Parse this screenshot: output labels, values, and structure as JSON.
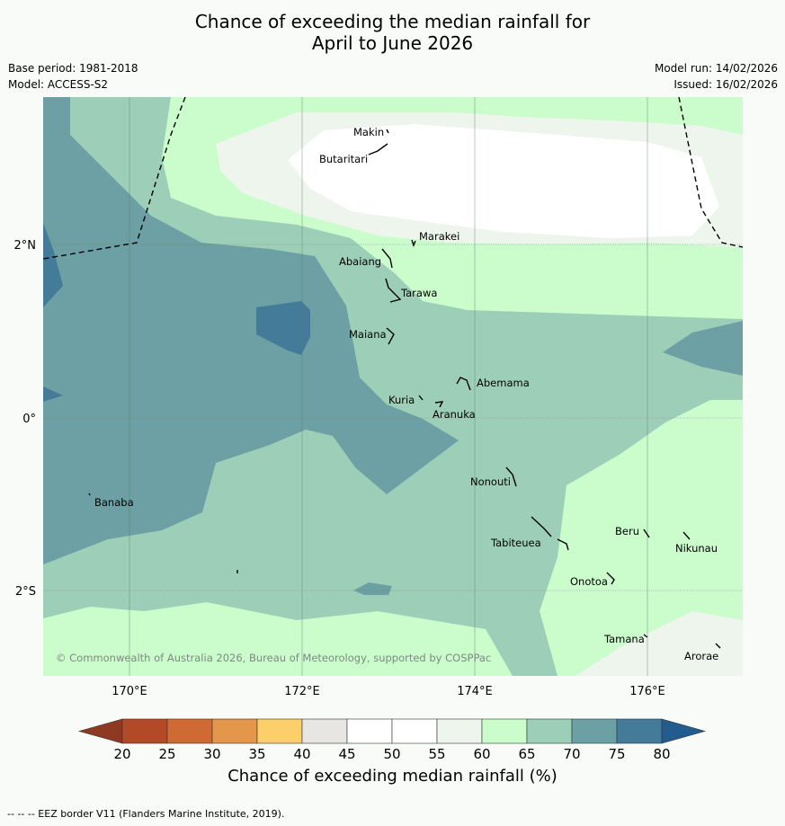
{
  "title": {
    "line1": "Chance of exceeding the median rainfall for",
    "line2": "April to June 2026"
  },
  "meta": {
    "base_period": "Base period: 1981-2018",
    "model": "Model: ACCESS-S2",
    "model_run": "Model run: 14/02/2026",
    "issued": "Issued: 16/02/2026"
  },
  "map": {
    "lon_ticks": [
      "170°E",
      "172°E",
      "174°E",
      "176°E"
    ],
    "lat_ticks": [
      "2°N",
      "0°",
      "2°S"
    ],
    "places": [
      "Makin",
      "Butaritari",
      "Marakei",
      "Abaiang",
      "Tarawa",
      "Maiana",
      "Abemama",
      "Kuria",
      "Aranuka",
      "Nonouti",
      "Banaba",
      "Tabiteuea",
      "Beru",
      "Nikunau",
      "Onotoa",
      "Tamana",
      "Arorae"
    ],
    "copyright": "© Commonwealth of Australia 2026, Bureau of Meteorology, supported by COSPPac"
  },
  "colorbar": {
    "ticks": [
      "20",
      "25",
      "30",
      "35",
      "40",
      "45",
      "50",
      "55",
      "60",
      "65",
      "70",
      "75",
      "80"
    ],
    "colors": {
      "under": "#8e3a22",
      "c20_25": "#b34a27",
      "c25_30": "#d06a35",
      "c30_35": "#e4974a",
      "c35_40": "#fccf6a",
      "c40_45": "#e8e6e2",
      "c45_55": "#ffffff",
      "c55_60": "#edf5ec",
      "c60_65": "#cbfccc",
      "c65_70": "#9dcfb8",
      "c70_75": "#6ca0a4",
      "c75_80": "#447b98",
      "over": "#225c8e"
    },
    "label": "Chance of exceeding median rainfall (%)"
  },
  "footnote": "-- -- -- EEZ border V11 (Flanders Marine Institute, 2019)."
}
